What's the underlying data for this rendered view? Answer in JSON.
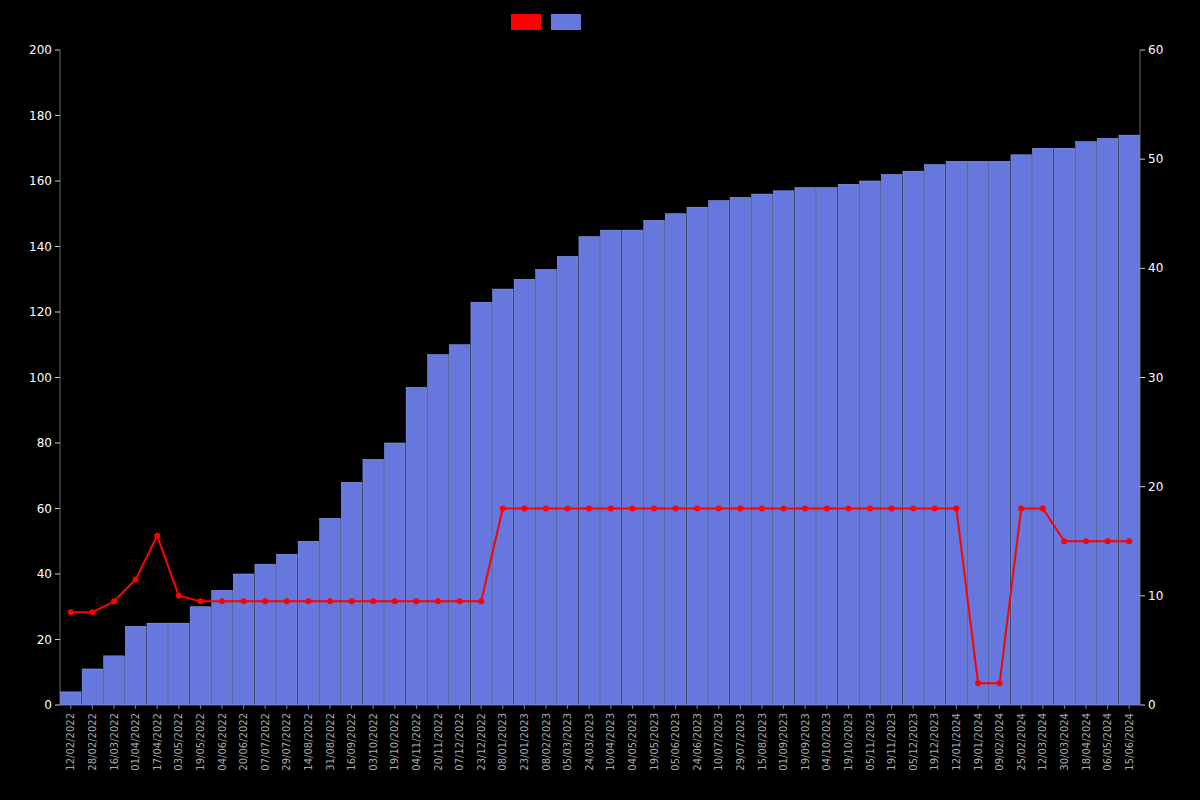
{
  "chart_data": {
    "type": "bar",
    "categories": [
      "12/02/2022",
      "28/02/2022",
      "16/03/2022",
      "01/04/2022",
      "17/04/2022",
      "03/05/2022",
      "19/05/2022",
      "04/06/2022",
      "20/06/2022",
      "07/07/2022",
      "29/07/2022",
      "14/08/2022",
      "31/08/2022",
      "16/09/2022",
      "03/10/2022",
      "19/10/2022",
      "04/11/2022",
      "20/11/2022",
      "07/12/2022",
      "23/12/2022",
      "08/01/2023",
      "23/01/2023",
      "08/02/2023",
      "05/03/2023",
      "24/03/2023",
      "10/04/2023",
      "04/05/2023",
      "19/05/2023",
      "05/06/2023",
      "24/06/2023",
      "10/07/2023",
      "29/07/2023",
      "15/08/2023",
      "01/09/2023",
      "19/09/2023",
      "04/10/2023",
      "19/10/2023",
      "05/11/2023",
      "19/11/2023",
      "05/12/2023",
      "19/12/2023",
      "12/01/2024",
      "19/01/2024",
      "09/02/2024",
      "25/02/2024",
      "12/03/2024",
      "30/03/2024",
      "18/04/2024",
      "06/05/2024",
      "15/06/2024"
    ],
    "series": [
      {
        "type": "bar",
        "color": "#6677dd",
        "values": [
          4,
          11,
          15,
          24,
          25,
          25,
          30,
          35,
          40,
          43,
          46,
          50,
          57,
          68,
          75,
          80,
          97,
          107,
          110,
          123,
          127,
          130,
          133,
          137,
          143,
          145,
          145,
          148,
          150,
          152,
          154,
          155,
          156,
          157,
          158,
          158,
          159,
          160,
          162,
          163,
          165,
          166,
          166,
          166,
          168,
          170,
          170,
          172,
          173,
          174
        ]
      },
      {
        "type": "line",
        "color": "#ff0000",
        "axis": "y2",
        "marker": "circle",
        "values": [
          8.5,
          8.5,
          9.5,
          11.5,
          15.5,
          10.0,
          9.5,
          9.5,
          9.5,
          9.5,
          9.5,
          9.5,
          9.5,
          9.5,
          9.5,
          9.5,
          9.5,
          9.5,
          9.5,
          9.5,
          18.0,
          18.0,
          18.0,
          18.0,
          18.0,
          18.0,
          18.0,
          18.0,
          18.0,
          18.0,
          18.0,
          18.0,
          18.0,
          18.0,
          18.0,
          18.0,
          18.0,
          18.0,
          18.0,
          18.0,
          18.0,
          18.0,
          2.0,
          2.0,
          18.0,
          18.0,
          15.0,
          15.0,
          15.0,
          15.0
        ]
      }
    ],
    "ylim": [
      0,
      200
    ],
    "yticks": [
      0,
      20,
      40,
      60,
      80,
      100,
      120,
      140,
      160,
      180,
      200
    ],
    "y2lim": [
      0,
      60
    ],
    "y2ticks": [
      0,
      10,
      20,
      30,
      40,
      50,
      60
    ],
    "grid": false,
    "legend": "top"
  }
}
